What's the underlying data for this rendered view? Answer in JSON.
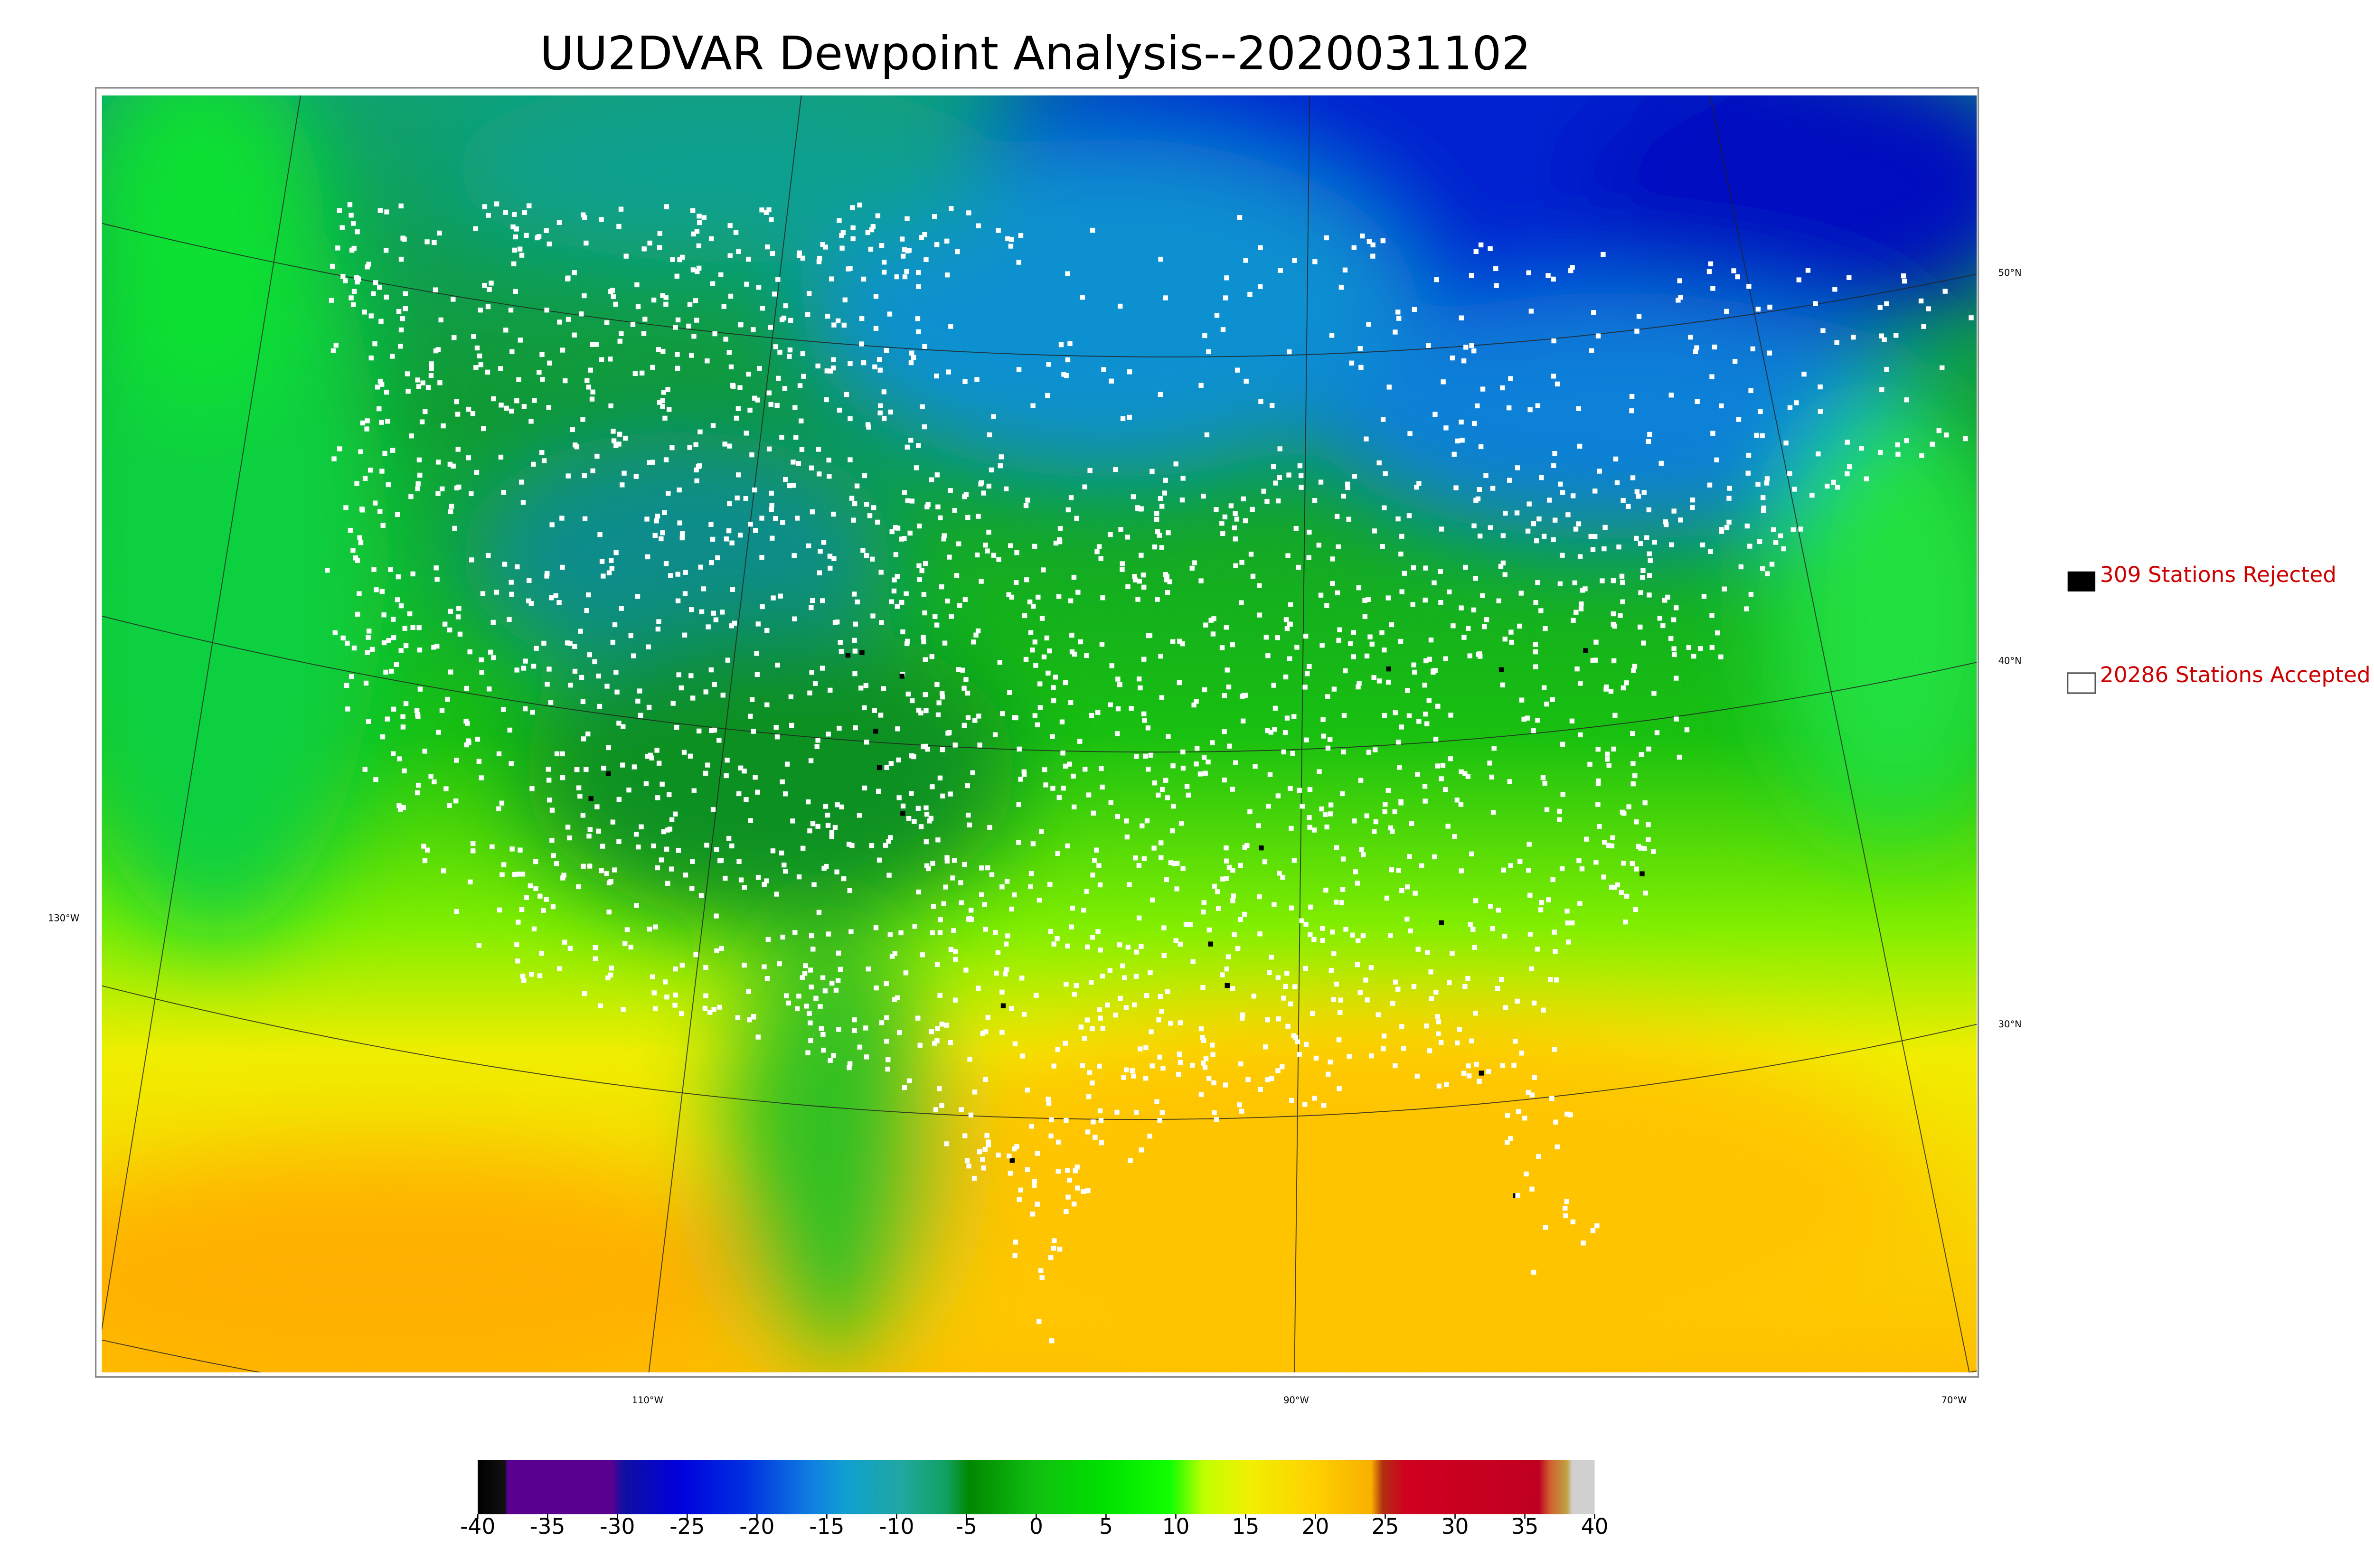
{
  "title": "UU2DVAR Dewpoint Analysis--2020031102",
  "legend": {
    "rejected": "309 Stations Rejected",
    "accepted": "20286 Stations Accepted"
  },
  "latitude_labels": [
    "50°N",
    "40°N",
    "30°N"
  ],
  "longitude_labels": [
    "130°W",
    "110°W",
    "90°W",
    "70°W"
  ],
  "colorbar": {
    "lim": [
      -40,
      40
    ],
    "ticks": [
      -40,
      -35,
      -30,
      -25,
      -20,
      -15,
      -10,
      -5,
      0,
      5,
      10,
      15,
      20,
      25,
      30,
      35,
      40
    ]
  }
}
